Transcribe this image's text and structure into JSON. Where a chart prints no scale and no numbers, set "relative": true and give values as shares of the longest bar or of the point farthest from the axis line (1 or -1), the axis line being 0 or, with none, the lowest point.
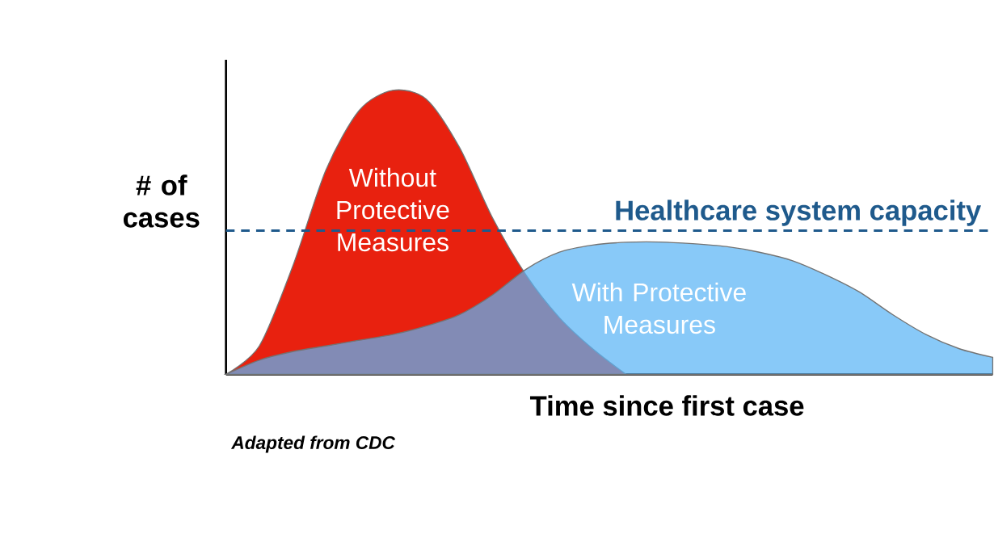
{
  "chart_data": {
    "type": "area",
    "relative": true,
    "xlabel": "Time since first case",
    "ylabel": "# of cases",
    "categories": [
      null,
      null,
      null,
      null,
      null,
      null,
      null,
      null,
      null,
      null,
      null,
      null,
      null,
      null,
      null,
      null,
      null,
      null,
      null,
      null,
      null,
      null,
      null,
      null
    ],
    "series": [
      {
        "name": "Without Protective Measures",
        "color": "#e8210f",
        "values": [
          0,
          0.1,
          0.38,
          0.72,
          0.93,
          1,
          0.97,
          0.8,
          0.55,
          0.35,
          0.2,
          0.09,
          0,
          null,
          null,
          null,
          null,
          null,
          null,
          null,
          null,
          null,
          null,
          null
        ]
      },
      {
        "name": "With Protective Measures",
        "color": "#5ab4f5",
        "values": [
          0,
          0.05,
          0.08,
          0.1,
          0.12,
          0.14,
          0.17,
          0.21,
          0.28,
          0.37,
          0.43,
          0.455,
          0.465,
          0.466,
          0.46,
          0.45,
          0.43,
          0.4,
          0.35,
          0.29,
          0.21,
          0.14,
          0.09,
          0.06
        ]
      }
    ],
    "ref_lines": [
      {
        "axis": "y",
        "value": 0.506,
        "label": "Healthcare system capacity",
        "color": "#1f5a8c",
        "line_style": "dashed"
      }
    ],
    "annotations": [
      "Adapted from CDC"
    ]
  }
}
